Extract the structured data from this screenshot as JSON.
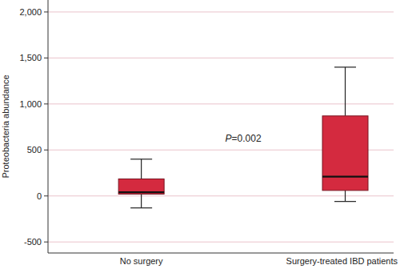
{
  "chart_data": {
    "type": "box",
    "y_label": "Proteobacteria abundance",
    "categories": [
      "No surgery",
      "Surgery-treated IBD patients"
    ],
    "boxes": [
      {
        "min": -130,
        "q1": 20,
        "median": 40,
        "q3": 185,
        "max": 400
      },
      {
        "min": -60,
        "q1": 60,
        "median": 210,
        "q3": 870,
        "max": 1400
      }
    ],
    "color": "#d42a3f",
    "ylim": [
      -620,
      2130
    ],
    "yticks": [
      -500,
      0,
      500,
      {
        "value": 1000,
        "label": "1,000"
      },
      {
        "value": 1500,
        "label": "1,500"
      },
      {
        "value": 2000,
        "label": "2,000"
      }
    ],
    "grid": true,
    "annotations": [
      {
        "text": "P=0.002"
      }
    ]
  }
}
